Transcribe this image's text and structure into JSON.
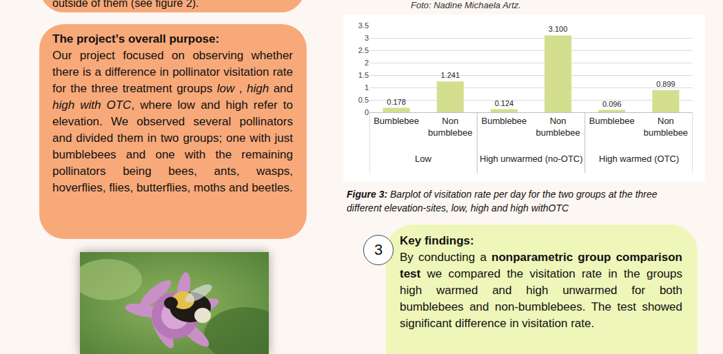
{
  "chart_data": {
    "type": "bar",
    "categories": [
      "Bumblebee",
      "Non bumblebee",
      "Bumblebee",
      "Non bumblebee",
      "Bumblebee",
      "Non bumblebee"
    ],
    "groups": [
      "Low",
      "Low",
      "High unwarmed (no-OTC)",
      "High unwarmed (no-OTC)",
      "High warmed (OTC)",
      "High warmed (OTC)"
    ],
    "values": [
      0.178,
      1.241,
      0.124,
      3.1,
      0.096,
      0.899
    ],
    "value_labels": [
      "0.178",
      "1.241",
      "0.124",
      "3.100",
      "0.096",
      "0.899"
    ],
    "color": "#d3df8e",
    "ylim": [
      0,
      3.5
    ],
    "yticks": [
      0,
      0.5,
      1,
      1.5,
      2,
      2.5,
      3,
      3.5
    ],
    "grid": true,
    "data_labels": true,
    "caption": {
      "label": "Figure 3:",
      "text": " Barplot of visitation rate per day for the two groups at the three different elevation-sites, low, high and high withOTC"
    }
  },
  "document": {
    "top_box": {
      "text": "outside of them (see figure 2)."
    },
    "photo_credit": "Foto: Nadine Michaela Artz.",
    "purpose": {
      "title": "The project’s overall purpose:",
      "body": [
        {
          "text": "Our project focused on observing whether there is a difference in pollinator visitation rate for the three treatment groups "
        },
        {
          "text": "low",
          "italic": true
        },
        {
          "text": " , "
        },
        {
          "text": "high",
          "italic": true
        },
        {
          "text": " and "
        },
        {
          "text": "high with OTC",
          "italic": true
        },
        {
          "text": ", where low and high refer to elevation. We observed several pollinators and divided them in two groups; one with just bumblebees and one with the remaining pollinators being bees, ants, wasps, hoverflies, flies, butterflies, moths and beetles."
        }
      ]
    },
    "key_findings": {
      "number": "3",
      "title": "Key findings:",
      "body": [
        {
          "text": "By conducting a "
        },
        {
          "text": "nonparametric group comparison test",
          "bold": true
        },
        {
          "text": " we compared the visitation rate in the groups high warmed and high unwarmed for both bumblebees and non-bumblebees. The test showed significant difference in visitation rate."
        }
      ]
    }
  }
}
